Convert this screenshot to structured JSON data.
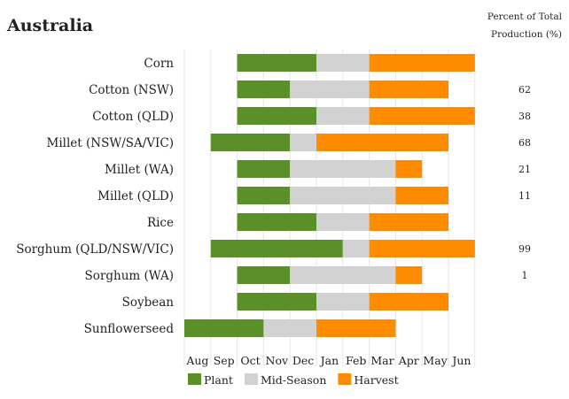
{
  "chart_data": {
    "type": "bar",
    "subtype": "gantt",
    "title": "Australia",
    "percent_header": [
      "Percent of Total",
      "Production (%)"
    ],
    "months": [
      "Aug",
      "Sep",
      "Oct",
      "Nov",
      "Dec",
      "Jan",
      "Feb",
      "Mar",
      "Apr",
      "May",
      "Jun"
    ],
    "legend": [
      {
        "name": "Plant",
        "color": "#5a8f29"
      },
      {
        "name": "Mid-Season",
        "color": "#d3d2d3"
      },
      {
        "name": "Harvest",
        "color": "#ff8c00"
      }
    ],
    "crops": [
      {
        "name": "Corn",
        "plant": [
          2,
          5
        ],
        "mid": [
          5,
          7
        ],
        "harvest": [
          7,
          11
        ],
        "percent": ""
      },
      {
        "name": "Cotton (NSW)",
        "plant": [
          2,
          4
        ],
        "mid": [
          4,
          7
        ],
        "harvest": [
          7,
          10
        ],
        "percent": "62"
      },
      {
        "name": "Cotton (QLD)",
        "plant": [
          2,
          5
        ],
        "mid": [
          5,
          7
        ],
        "harvest": [
          7,
          11
        ],
        "percent": "38"
      },
      {
        "name": "Millet (NSW/SA/VIC)",
        "plant": [
          1,
          4
        ],
        "mid": [
          4,
          5
        ],
        "harvest": [
          5,
          10
        ],
        "percent": "68"
      },
      {
        "name": "Millet (WA)",
        "plant": [
          2,
          4
        ],
        "mid": [
          4,
          8
        ],
        "harvest": [
          8,
          9
        ],
        "percent": "21"
      },
      {
        "name": "Millet (QLD)",
        "plant": [
          2,
          4
        ],
        "mid": [
          4,
          8
        ],
        "harvest": [
          8,
          10
        ],
        "percent": "11"
      },
      {
        "name": "Rice",
        "plant": [
          2,
          5
        ],
        "mid": [
          5,
          7
        ],
        "harvest": [
          7,
          10
        ],
        "percent": ""
      },
      {
        "name": "Sorghum (QLD/NSW/VIC)",
        "plant": [
          1,
          6
        ],
        "mid": [
          6,
          7
        ],
        "harvest": [
          7,
          11
        ],
        "percent": "99"
      },
      {
        "name": "Sorghum (WA)",
        "plant": [
          2,
          4
        ],
        "mid": [
          4,
          8
        ],
        "harvest": [
          8,
          9
        ],
        "percent": "1"
      },
      {
        "name": "Soybean",
        "plant": [
          2,
          5
        ],
        "mid": [
          5,
          7
        ],
        "harvest": [
          7,
          10
        ],
        "percent": ""
      },
      {
        "name": "Sunflowerseed",
        "plant": [
          0,
          3
        ],
        "mid": [
          3,
          5
        ],
        "harvest": [
          5,
          8
        ],
        "percent": ""
      }
    ]
  }
}
